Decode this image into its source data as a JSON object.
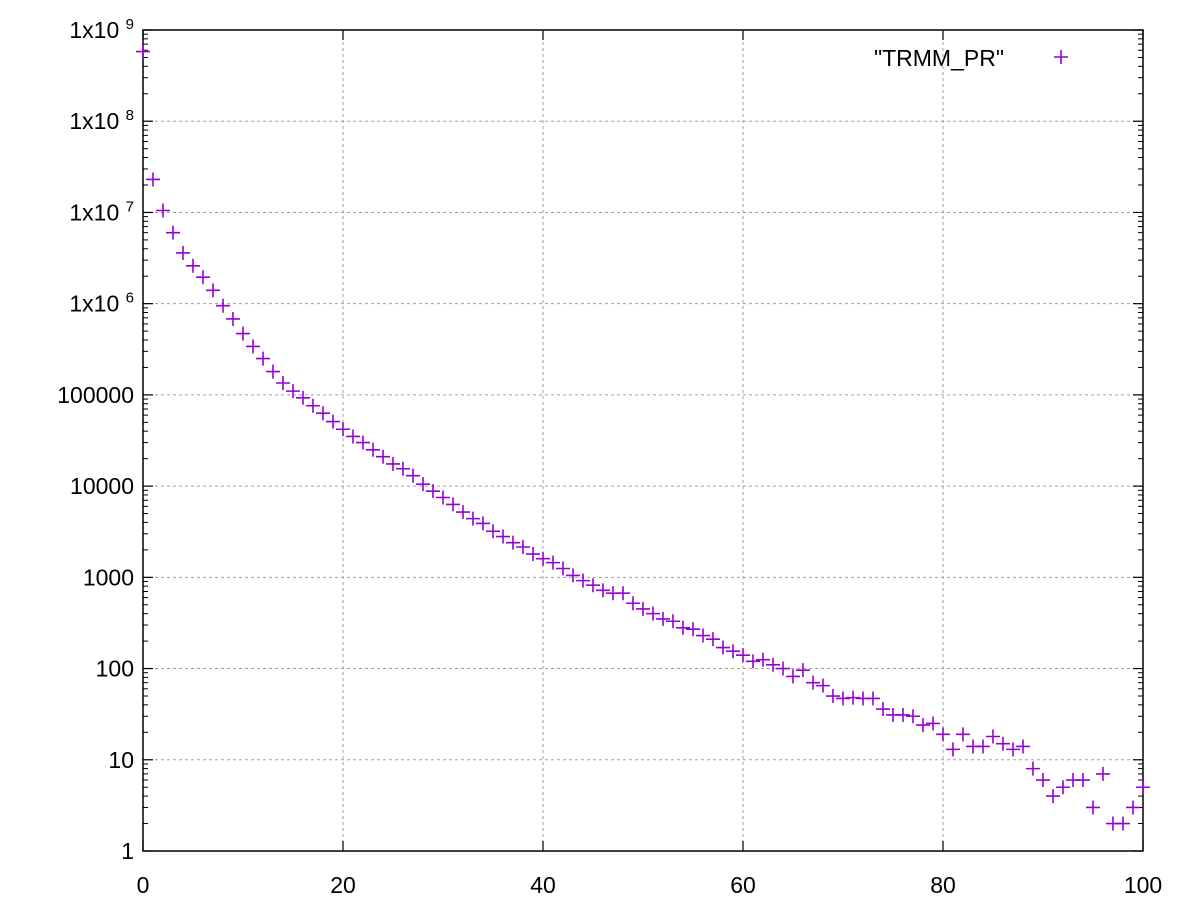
{
  "chart_data": {
    "type": "scatter",
    "title": "",
    "xlabel": "",
    "ylabel": "",
    "xlim": [
      0,
      100
    ],
    "ylim": [
      1,
      1000000000
    ],
    "yscale": "log",
    "grid": true,
    "legend_position": "top-right",
    "marker": "plus",
    "color": "#9400D3",
    "x_ticks": [
      {
        "value": 0,
        "label": "0"
      },
      {
        "value": 20,
        "label": "20"
      },
      {
        "value": 40,
        "label": "40"
      },
      {
        "value": 60,
        "label": "60"
      },
      {
        "value": 80,
        "label": "80"
      },
      {
        "value": 100,
        "label": "100"
      }
    ],
    "y_ticks": [
      {
        "value": 1,
        "label": "1",
        "sup": ""
      },
      {
        "value": 10,
        "label": "10",
        "sup": ""
      },
      {
        "value": 100,
        "label": "100",
        "sup": ""
      },
      {
        "value": 1000,
        "label": "1000",
        "sup": ""
      },
      {
        "value": 10000,
        "label": "10000",
        "sup": ""
      },
      {
        "value": 100000,
        "label": "100000",
        "sup": ""
      },
      {
        "value": 1000000,
        "label": "1x10",
        "sup": "6"
      },
      {
        "value": 10000000,
        "label": "1x10",
        "sup": "7"
      },
      {
        "value": 100000000,
        "label": "1x10",
        "sup": "8"
      },
      {
        "value": 1000000000,
        "label": "1x10",
        "sup": "9"
      }
    ],
    "series": [
      {
        "name": "\"TRMM_PR\"",
        "x": [
          0,
          1,
          2,
          3,
          4,
          5,
          6,
          7,
          8,
          9,
          10,
          11,
          12,
          13,
          14,
          15,
          16,
          17,
          18,
          19,
          20,
          21,
          22,
          23,
          24,
          25,
          26,
          27,
          28,
          29,
          30,
          31,
          32,
          33,
          34,
          35,
          36,
          37,
          38,
          39,
          40,
          41,
          42,
          43,
          44,
          45,
          46,
          47,
          48,
          49,
          50,
          51,
          52,
          53,
          54,
          55,
          56,
          57,
          58,
          59,
          60,
          61,
          62,
          63,
          64,
          65,
          66,
          67,
          68,
          69,
          70,
          71,
          72,
          73,
          74,
          75,
          76,
          77,
          78,
          79,
          80,
          81,
          82,
          83,
          84,
          85,
          86,
          87,
          88,
          89,
          90,
          91,
          92,
          93,
          94,
          95,
          96,
          97,
          98,
          99,
          100
        ],
        "y": [
          580000000,
          23000000,
          10500000,
          6000000,
          3600000,
          2600000,
          1950000,
          1400000,
          950000,
          680000,
          470000,
          340000,
          250000,
          180000,
          135000,
          110000,
          93000,
          76000,
          63000,
          51000,
          42000,
          35000,
          30000,
          25000,
          21000,
          17500,
          15500,
          13000,
          10500,
          8800,
          7500,
          6300,
          5200,
          4400,
          3900,
          3200,
          2800,
          2400,
          2150,
          1800,
          1600,
          1450,
          1250,
          1050,
          920,
          820,
          720,
          670,
          670,
          520,
          450,
          400,
          350,
          330,
          280,
          270,
          230,
          210,
          170,
          155,
          140,
          120,
          125,
          110,
          100,
          82,
          96,
          70,
          65,
          50,
          47,
          48,
          47,
          47,
          36,
          31,
          31,
          30,
          24,
          25,
          19,
          13,
          19,
          14,
          14,
          18,
          15,
          13,
          14,
          8,
          6,
          4,
          5,
          6,
          6,
          3,
          7,
          2,
          2,
          3,
          5
        ]
      }
    ]
  }
}
